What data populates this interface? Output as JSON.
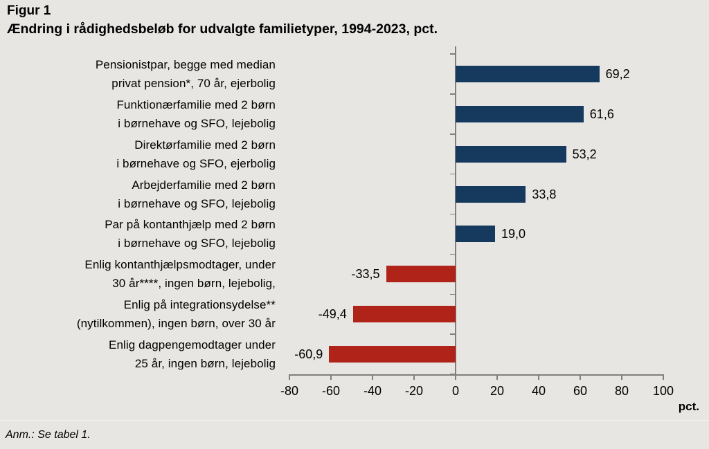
{
  "figure": {
    "label": "Figur 1",
    "title": "Ændring i rådighedsbeløb for udvalgte familietyper, 1994-2023, pct.",
    "note": "Anm.: Se tabel 1."
  },
  "chart_data": {
    "type": "bar",
    "orientation": "horizontal",
    "title": "Ændring i rådighedsbeløb for udvalgte familietyper, 1994-2023, pct.",
    "categories": [
      [
        "Pensionistpar, begge med median",
        "privat pension*, 70 år, ejerbolig"
      ],
      [
        "Funktionærfamilie med 2 børn",
        "i børnehave og SFO, lejebolig"
      ],
      [
        "Direktørfamilie med 2 børn",
        "i børnehave og SFO, ejerbolig"
      ],
      [
        "Arbejderfamilie med 2 børn",
        "i børnehave og SFO, lejebolig"
      ],
      [
        "Par på kontanthjælp med 2 børn",
        "i børnehave og SFO, lejebolig"
      ],
      [
        "Enlig kontanthjælpsmodtager, under",
        "30 år****, ingen børn, lejebolig,"
      ],
      [
        "Enlig på integrationsydelse**",
        "(nytilkommen), ingen børn, over 30 år"
      ],
      [
        "Enlig dagpengemodtager under",
        "25 år, ingen børn, lejebolig"
      ]
    ],
    "values": [
      69.2,
      61.6,
      53.2,
      33.8,
      19.0,
      -33.5,
      -49.4,
      -60.9
    ],
    "value_labels": [
      "69,2",
      "61,6",
      "53,2",
      "33,8",
      "19,0",
      "-33,5",
      "-49,4",
      "-60,9"
    ],
    "xlim": [
      -80,
      100
    ],
    "xticks": [
      -80,
      -60,
      -40,
      -20,
      0,
      20,
      40,
      60,
      80,
      100
    ],
    "axis_unit_label": "pct.",
    "grid": false,
    "legend": false,
    "colors": {
      "positive": "#16395E",
      "negative": "#B02318",
      "axis": "#7F7F7F",
      "background": "#E7E6E3"
    }
  }
}
